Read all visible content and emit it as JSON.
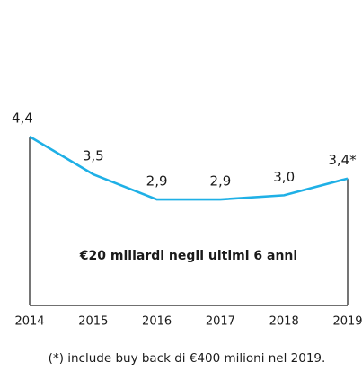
{
  "chart_data": {
    "type": "line",
    "categories": [
      "2014",
      "2015",
      "2016",
      "2017",
      "2018",
      "2019"
    ],
    "values": [
      4.4,
      3.5,
      2.9,
      2.9,
      3.0,
      3.4
    ],
    "value_labels": [
      "4,4",
      "3,5",
      "2,9",
      "2,9",
      "3,0",
      "3,4*"
    ],
    "color": "#1fb0e6",
    "annotation": "€20 miliardi negli ultimi 6 anni",
    "footnote": "(*) include buy back di €400 milioni nel 2019."
  }
}
